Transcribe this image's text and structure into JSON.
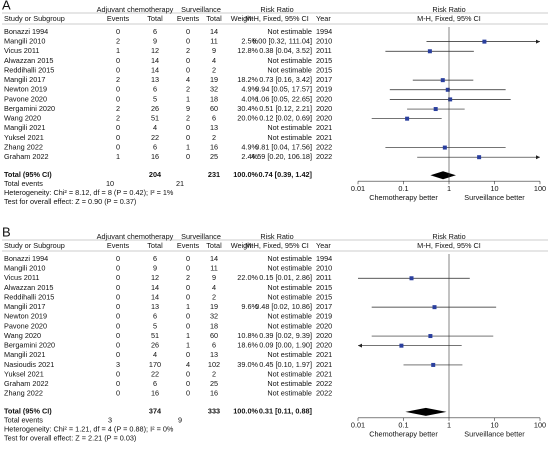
{
  "chart_data": [
    {
      "type": "forest",
      "label": "A",
      "group_a": "Adjuvant chemotherapy",
      "group_b": "Surveillance",
      "col_study": "Study or Subgroup",
      "col_events_a": "Events",
      "col_total_a": "Total",
      "col_events_b": "Events",
      "col_total_b": "Total",
      "col_weight": "Weight",
      "col_rr": "Risk Ratio",
      "col_method": "M-H, Fixed, 95% CI",
      "col_year": "Year",
      "plot_title": "Risk Ratio",
      "plot_subtitle": "M-H, Fixed, 95% CI",
      "rows": [
        {
          "study": "Bonazzi 1994",
          "events_a": 0,
          "total_a": 6,
          "events_b": 0,
          "total_b": 14,
          "weight": null,
          "rr_label": "Not estimable",
          "year": 1994,
          "rr": null,
          "ci": null
        },
        {
          "study": "Mangili 2010",
          "events_a": 2,
          "total_a": 9,
          "events_b": 0,
          "total_b": 11,
          "weight": "2.5%",
          "rr_label": "6.00 [0.32, 111.04]",
          "year": 2010,
          "rr": 6.0,
          "ci": [
            0.32,
            111.04
          ]
        },
        {
          "study": "Vicus 2011",
          "events_a": 1,
          "total_a": 12,
          "events_b": 2,
          "total_b": 9,
          "weight": "12.8%",
          "rr_label": "0.38 [0.04, 3.52]",
          "year": 2011,
          "rr": 0.38,
          "ci": [
            0.04,
            3.52
          ]
        },
        {
          "study": "Alwazzan 2015",
          "events_a": 0,
          "total_a": 14,
          "events_b": 0,
          "total_b": 4,
          "weight": null,
          "rr_label": "Not estimable",
          "year": 2015,
          "rr": null,
          "ci": null
        },
        {
          "study": "Reddihalli 2015",
          "events_a": 0,
          "total_a": 14,
          "events_b": 0,
          "total_b": 2,
          "weight": null,
          "rr_label": "Not estimable",
          "year": 2015,
          "rr": null,
          "ci": null
        },
        {
          "study": "Mangili 2017",
          "events_a": 2,
          "total_a": 13,
          "events_b": 4,
          "total_b": 19,
          "weight": "18.2%",
          "rr_label": "0.73 [0.16, 3.42]",
          "year": 2017,
          "rr": 0.73,
          "ci": [
            0.16,
            3.42
          ]
        },
        {
          "study": "Newton 2019",
          "events_a": 0,
          "total_a": 6,
          "events_b": 2,
          "total_b": 32,
          "weight": "4.9%",
          "rr_label": "0.94 [0.05, 17.57]",
          "year": 2019,
          "rr": 0.94,
          "ci": [
            0.05,
            17.57
          ]
        },
        {
          "study": "Pavone 2020",
          "events_a": 0,
          "total_a": 5,
          "events_b": 1,
          "total_b": 18,
          "weight": "4.0%",
          "rr_label": "1.06 [0.05, 22.65]",
          "year": 2020,
          "rr": 1.06,
          "ci": [
            0.05,
            22.65
          ]
        },
        {
          "study": "Bergamini 2020",
          "events_a": 2,
          "total_a": 26,
          "events_b": 9,
          "total_b": 60,
          "weight": "30.4%",
          "rr_label": "0.51 [0.12, 2.21]",
          "year": 2020,
          "rr": 0.51,
          "ci": [
            0.12,
            2.21
          ]
        },
        {
          "study": "Wang 2020",
          "events_a": 2,
          "total_a": 51,
          "events_b": 2,
          "total_b": 6,
          "weight": "20.0%",
          "rr_label": "0.12 [0.02, 0.69]",
          "year": 2020,
          "rr": 0.12,
          "ci": [
            0.02,
            0.69
          ]
        },
        {
          "study": "Mangili 2021",
          "events_a": 0,
          "total_a": 4,
          "events_b": 0,
          "total_b": 13,
          "weight": null,
          "rr_label": "Not estimable",
          "year": 2021,
          "rr": null,
          "ci": null
        },
        {
          "study": "Yuksel 2021",
          "events_a": 0,
          "total_a": 22,
          "events_b": 0,
          "total_b": 2,
          "weight": null,
          "rr_label": "Not estimable",
          "year": 2021,
          "rr": null,
          "ci": null
        },
        {
          "study": "Zhang 2022",
          "events_a": 0,
          "total_a": 6,
          "events_b": 1,
          "total_b": 16,
          "weight": "4.9%",
          "rr_label": "0.81 [0.04, 17.56]",
          "year": 2022,
          "rr": 0.81,
          "ci": [
            0.04,
            17.56
          ]
        },
        {
          "study": "Graham 2022",
          "events_a": 1,
          "total_a": 16,
          "events_b": 0,
          "total_b": 25,
          "weight": "2.4%",
          "rr_label": "4.59 [0.20, 106.18]",
          "year": 2022,
          "rr": 4.59,
          "ci": [
            0.2,
            106.18
          ]
        }
      ],
      "total": {
        "study": "Total (95% CI)",
        "total_a": 204,
        "total_b": 231,
        "weight": "100.0%",
        "rr_label": "0.74 [0.39, 1.42]",
        "rr": 0.74,
        "ci": [
          0.39,
          1.42
        ]
      },
      "total_events": {
        "label": "Total events",
        "events_a": 10,
        "events_b": 21
      },
      "heterogeneity": "Heterogeneity: Chi² = 8.12, df = 8 (P = 0.42); I² = 1%",
      "overall_test": "Test for overall effect: Z = 0.90 (P = 0.37)",
      "x_log": true,
      "reference_line": 1,
      "xlim": [
        0.01,
        100
      ],
      "xticks": [
        0.01,
        0.1,
        1,
        10,
        100
      ],
      "left_label": "Chemotherapy better",
      "right_label": "Surveillance better",
      "color": "#2a3f9e"
    },
    {
      "type": "forest",
      "label": "B",
      "group_a": "Adjuvant chemotherapy",
      "group_b": "Surveillance",
      "col_study": "Study or Subgroup",
      "col_events_a": "Events",
      "col_total_a": "Total",
      "col_events_b": "Events",
      "col_total_b": "Total",
      "col_weight": "Weight",
      "col_rr": "Risk Ratio",
      "col_method": "M-H, Fixed, 95% CI",
      "col_year": "Year",
      "plot_title": "Risk Ratio",
      "plot_subtitle": "M-H, Fixed, 95% CI",
      "rows": [
        {
          "study": "Bonazzi 1994",
          "events_a": 0,
          "total_a": 6,
          "events_b": 0,
          "total_b": 14,
          "weight": null,
          "rr_label": "Not estimable",
          "year": 1994,
          "rr": null,
          "ci": null
        },
        {
          "study": "Mangili 2010",
          "events_a": 0,
          "total_a": 9,
          "events_b": 0,
          "total_b": 11,
          "weight": null,
          "rr_label": "Not estimable",
          "year": 2010,
          "rr": null,
          "ci": null
        },
        {
          "study": "Vicus 2011",
          "events_a": 0,
          "total_a": 12,
          "events_b": 2,
          "total_b": 9,
          "weight": "22.0%",
          "rr_label": "0.15 [0.01, 2.86]",
          "year": 2011,
          "rr": 0.15,
          "ci": [
            0.01,
            2.86
          ]
        },
        {
          "study": "Alwazzan 2015",
          "events_a": 0,
          "total_a": 14,
          "events_b": 0,
          "total_b": 4,
          "weight": null,
          "rr_label": "Not estimable",
          "year": 2015,
          "rr": null,
          "ci": null
        },
        {
          "study": "Reddihalli 2015",
          "events_a": 0,
          "total_a": 14,
          "events_b": 0,
          "total_b": 2,
          "weight": null,
          "rr_label": "Not estimable",
          "year": 2015,
          "rr": null,
          "ci": null
        },
        {
          "study": "Mangili 2017",
          "events_a": 0,
          "total_a": 13,
          "events_b": 1,
          "total_b": 19,
          "weight": "9.6%",
          "rr_label": "0.48 [0.02, 10.86]",
          "year": 2017,
          "rr": 0.48,
          "ci": [
            0.02,
            10.86
          ]
        },
        {
          "study": "Newton 2019",
          "events_a": 0,
          "total_a": 6,
          "events_b": 0,
          "total_b": 32,
          "weight": null,
          "rr_label": "Not estimable",
          "year": 2019,
          "rr": null,
          "ci": null
        },
        {
          "study": "Pavone 2020",
          "events_a": 0,
          "total_a": 5,
          "events_b": 0,
          "total_b": 18,
          "weight": null,
          "rr_label": "Not estimable",
          "year": 2020,
          "rr": null,
          "ci": null
        },
        {
          "study": "Wang 2020",
          "events_a": 0,
          "total_a": 51,
          "events_b": 1,
          "total_b": 60,
          "weight": "10.8%",
          "rr_label": "0.39 [0.02, 9.39]",
          "year": 2020,
          "rr": 0.39,
          "ci": [
            0.02,
            9.39
          ]
        },
        {
          "study": "Bergamini 2020",
          "events_a": 0,
          "total_a": 26,
          "events_b": 1,
          "total_b": 6,
          "weight": "18.6%",
          "rr_label": "0.09 [0.00, 1.90]",
          "year": 2020,
          "rr": 0.09,
          "ci": [
            0.0,
            1.9
          ]
        },
        {
          "study": "Mangili 2021",
          "events_a": 0,
          "total_a": 4,
          "events_b": 0,
          "total_b": 13,
          "weight": null,
          "rr_label": "Not estimable",
          "year": 2021,
          "rr": null,
          "ci": null
        },
        {
          "study": "Nasioudis 2021",
          "events_a": 3,
          "total_a": 170,
          "events_b": 4,
          "total_b": 102,
          "weight": "39.0%",
          "rr_label": "0.45 [0.10, 1.97]",
          "year": 2021,
          "rr": 0.45,
          "ci": [
            0.1,
            1.97
          ]
        },
        {
          "study": "Yuksel 2021",
          "events_a": 0,
          "total_a": 22,
          "events_b": 0,
          "total_b": 2,
          "weight": null,
          "rr_label": "Not estimable",
          "year": 2021,
          "rr": null,
          "ci": null
        },
        {
          "study": "Graham 2022",
          "events_a": 0,
          "total_a": 6,
          "events_b": 0,
          "total_b": 25,
          "weight": null,
          "rr_label": "Not estimable",
          "year": 2022,
          "rr": null,
          "ci": null
        },
        {
          "study": "Zhang 2022",
          "events_a": 0,
          "total_a": 16,
          "events_b": 0,
          "total_b": 16,
          "weight": null,
          "rr_label": "Not estimable",
          "year": 2022,
          "rr": null,
          "ci": null
        }
      ],
      "total": {
        "study": "Total (95% CI)",
        "total_a": 374,
        "total_b": 333,
        "weight": "100.0%",
        "rr_label": "0.31 [0.11, 0.88]",
        "rr": 0.31,
        "ci": [
          0.11,
          0.88
        ]
      },
      "total_events": {
        "label": "Total events",
        "events_a": 3,
        "events_b": 9
      },
      "heterogeneity": "Heterogeneity: Chi² = 1.21, df = 4 (P = 0.88); I² = 0%",
      "overall_test": "Test for overall effect: Z = 2.21 (P = 0.03)",
      "x_log": true,
      "reference_line": 1,
      "xlim": [
        0.01,
        100
      ],
      "xticks": [
        0.01,
        0.1,
        1,
        10,
        100
      ],
      "left_label": "Chemotherapy better",
      "right_label": "Surveillance better",
      "color": "#2a3f9e"
    }
  ]
}
